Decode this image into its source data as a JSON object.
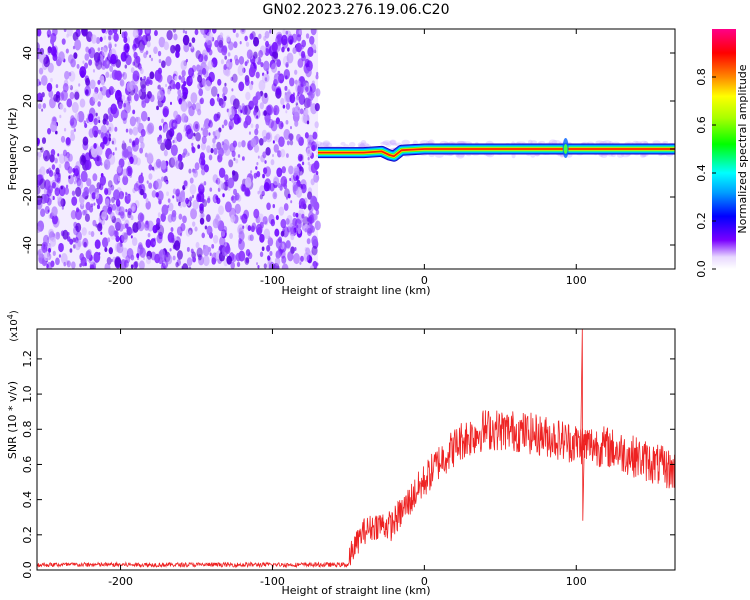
{
  "title": "GN02.2023.276.19.06.C20",
  "chart_data": [
    {
      "type": "heatmap",
      "xlabel": "Height of straight line (km)",
      "ylabel": "Frequency (Hz)",
      "xlim": [
        -255,
        165
      ],
      "ylim": [
        -50,
        50
      ],
      "xticks": [
        -200,
        -100,
        0,
        100
      ],
      "yticks": [
        -40,
        -20,
        0,
        20,
        40
      ],
      "noise_region_x": [
        -255,
        -70
      ],
      "signal_track": {
        "x_start": -70,
        "x_end": 165,
        "center_freq": 0,
        "segments": [
          {
            "x": -70,
            "y": -1.5
          },
          {
            "x": -40,
            "y": -1.5
          },
          {
            "x": -28,
            "y": -1.0
          },
          {
            "x": -23,
            "y": -2.5
          },
          {
            "x": -20,
            "y": -3.0
          },
          {
            "x": -15,
            "y": -0.5
          },
          {
            "x": 0,
            "y": 0.0
          },
          {
            "x": 165,
            "y": 0.0
          }
        ],
        "spike_x": 93
      },
      "colorbar": {
        "label": "Normalized spectral amplitude",
        "range": [
          0,
          1
        ],
        "ticks": [
          "0.0",
          "0.2",
          "0.4",
          "0.6",
          "0.8"
        ]
      }
    },
    {
      "type": "line",
      "xlabel": "Height of straight line (km)",
      "ylabel": "SNR (10 * v/v)",
      "scale_label": "(x10^4)",
      "xlim": [
        -255,
        165
      ],
      "ylim": [
        0,
        1.37
      ],
      "xticks": [
        -200,
        -100,
        0,
        100
      ],
      "yticks": [
        "0.0",
        "0.2",
        "0.4",
        "0.6",
        "0.8",
        "1.0",
        "1.2"
      ],
      "series": [
        {
          "color": "#ee2222",
          "envelope": [
            {
              "x": -255,
              "y": 0.03
            },
            {
              "x": -50,
              "y": 0.03
            },
            {
              "x": -48,
              "y": 0.1
            },
            {
              "x": -40,
              "y": 0.22
            },
            {
              "x": -30,
              "y": 0.26
            },
            {
              "x": -22,
              "y": 0.25
            },
            {
              "x": -15,
              "y": 0.33
            },
            {
              "x": -5,
              "y": 0.45
            },
            {
              "x": 10,
              "y": 0.62
            },
            {
              "x": 25,
              "y": 0.74
            },
            {
              "x": 40,
              "y": 0.8
            },
            {
              "x": 60,
              "y": 0.79
            },
            {
              "x": 80,
              "y": 0.76
            },
            {
              "x": 100,
              "y": 0.72
            },
            {
              "x": 120,
              "y": 0.7
            },
            {
              "x": 140,
              "y": 0.64
            },
            {
              "x": 165,
              "y": 0.56
            }
          ],
          "spike": {
            "x": 104,
            "peak": 1.37,
            "dip": 0.28
          }
        }
      ]
    }
  ]
}
